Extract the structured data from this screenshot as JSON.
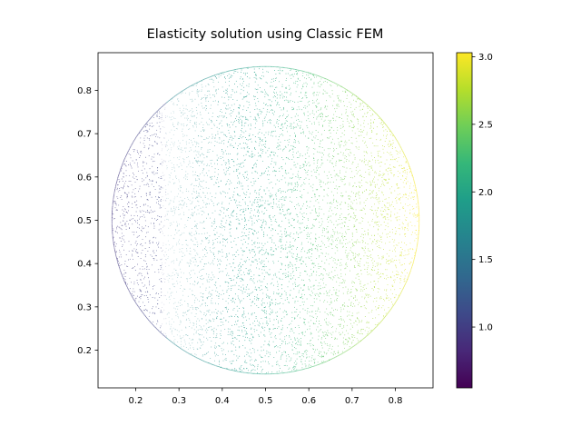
{
  "chart_data": {
    "type": "scatter",
    "title": "Elasticity solution using Classic FEM",
    "xlabel": "",
    "ylabel": "",
    "xlim": [
      0.113,
      0.887
    ],
    "ylim": [
      0.113,
      0.887
    ],
    "xticks": [
      "0.2",
      "0.3",
      "0.4",
      "0.5",
      "0.6",
      "0.7",
      "0.8"
    ],
    "yticks": [
      "0.2",
      "0.3",
      "0.4",
      "0.5",
      "0.6",
      "0.7",
      "0.8"
    ],
    "domain": {
      "shape": "disk",
      "center": [
        0.5,
        0.5
      ],
      "radius": 0.355
    },
    "field": {
      "description_visible": "tricontour of solution over mesh nodes",
      "value_range": [
        0.55,
        3.03
      ],
      "low_band_x_max": 0.27,
      "low_value": 0.95,
      "gap_value": 1.6,
      "gradient": [
        [
          0.27,
          1.65
        ],
        [
          0.5,
          2.0
        ],
        [
          0.7,
          2.55
        ],
        [
          0.855,
          3.03
        ]
      ]
    },
    "grid": false,
    "colorbar": {
      "colormap": "viridis",
      "range": [
        0.55,
        3.03
      ],
      "ticks": [
        "1.0",
        "1.5",
        "2.0",
        "2.5",
        "3.0"
      ]
    }
  },
  "colors": {
    "viridis": [
      "#440154",
      "#482878",
      "#3e4989",
      "#31688e",
      "#26828e",
      "#1f9e89",
      "#35b779",
      "#6ece58",
      "#b5de2b",
      "#fde725"
    ]
  }
}
